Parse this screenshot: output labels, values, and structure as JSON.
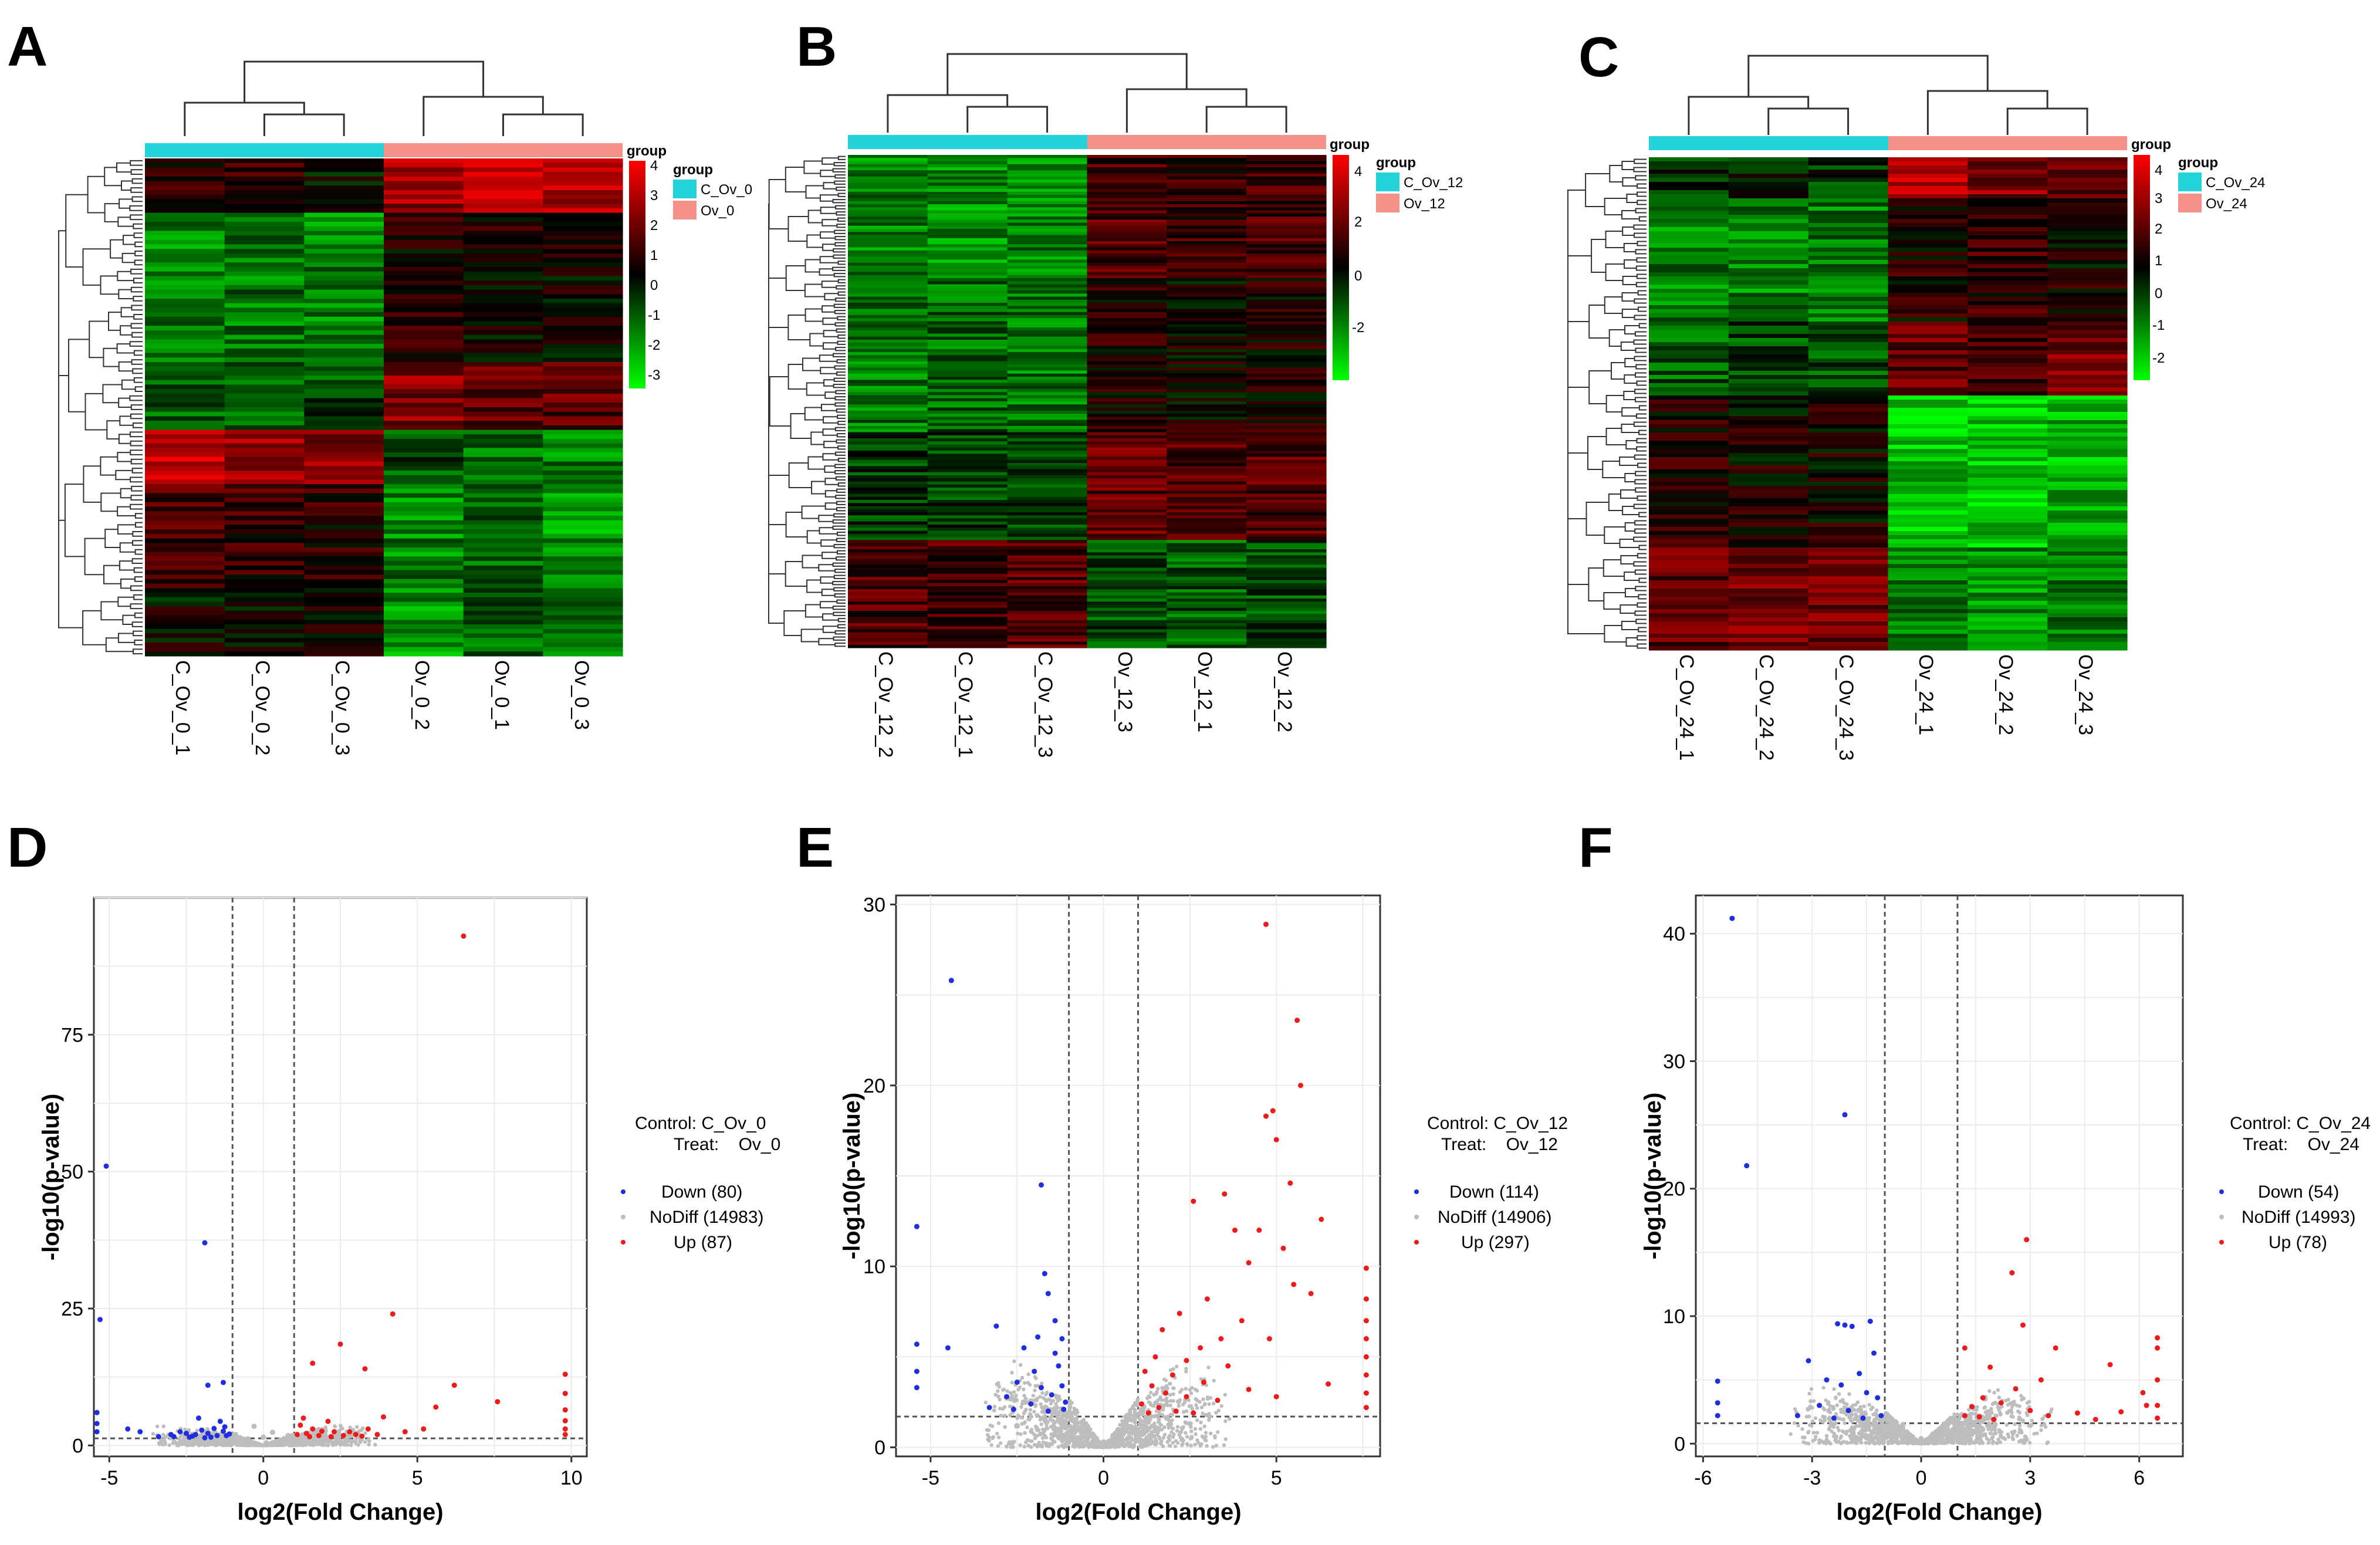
{
  "panels": {
    "A": "A",
    "B": "B",
    "C": "C",
    "D": "D",
    "E": "E",
    "F": "F"
  },
  "colors": {
    "control_group": "#22d3dc",
    "treat_group": "#f4928a",
    "down": "#1f2fe0",
    "nodiff": "#bdbdbd",
    "up": "#ee1b1b",
    "heat_high": "#ff0000",
    "heat_mid": "#000000",
    "heat_low": "#00ff00"
  },
  "heatmaps": [
    {
      "panel": "A",
      "legend_title": "group",
      "groups": [
        "C_Ov_0",
        "Ov_0"
      ],
      "colorbar_title": "group",
      "colorbar_ticks": [
        "4",
        "3",
        "2",
        "1",
        "0",
        "-1",
        "-2",
        "-3"
      ],
      "columns": [
        "C_Ov_0_1",
        "C_Ov_0_2",
        "C_Ov_0_3",
        "Ov_0_2",
        "Ov_0_1",
        "Ov_0_3"
      ]
    },
    {
      "panel": "B",
      "legend_title": "group",
      "groups": [
        "C_Ov_12",
        "Ov_12"
      ],
      "colorbar_title": "group",
      "colorbar_ticks": [
        "4",
        "2",
        "0",
        "-2"
      ],
      "columns": [
        "C_Ov_12_2",
        "C_Ov_12_1",
        "C_Ov_12_3",
        "Ov_12_3",
        "Ov_12_1",
        "Ov_12_2"
      ]
    },
    {
      "panel": "C",
      "legend_title": "group",
      "groups": [
        "C_Ov_24",
        "Ov_24"
      ],
      "colorbar_title": "group",
      "colorbar_ticks": [
        "4",
        "3",
        "2",
        "1",
        "0",
        "-1",
        "-2"
      ],
      "columns": [
        "C_Ov_24_1",
        "C_Ov_24_2",
        "C_Ov_24_3",
        "Ov_24_1",
        "Ov_24_2",
        "Ov_24_3"
      ]
    }
  ],
  "chart_data": [
    {
      "type": "scatter",
      "panel": "D",
      "title": "",
      "xlabel": "log2(Fold Change)",
      "ylabel": "-log10(p-value)",
      "xlim": [
        -5.5,
        10.5
      ],
      "ylim": [
        -2,
        100
      ],
      "xticks": [
        -5,
        0,
        5,
        10
      ],
      "yticks": [
        0,
        25,
        50,
        75
      ],
      "vlines": [
        -1,
        1
      ],
      "hline": 1.3,
      "legend_control": "Control: C_Ov_0",
      "legend_treat": "Treat:    Ov_0",
      "legend_entries": [
        "Down (80)",
        "NoDiff (14983)",
        "Up (87)"
      ],
      "series": [
        {
          "name": "Down",
          "points": [
            [
              -5.1,
              51
            ],
            [
              -5.3,
              23
            ],
            [
              -1.9,
              37
            ],
            [
              -1.8,
              11
            ],
            [
              -1.3,
              11.5
            ],
            [
              -5.4,
              6
            ],
            [
              -5.4,
              4
            ],
            [
              -5.4,
              2.5
            ],
            [
              -4.4,
              3
            ],
            [
              -4,
              2.5
            ],
            [
              -3,
              2
            ],
            [
              -2.7,
              2.5
            ],
            [
              -2.5,
              2.2
            ],
            [
              -2.2,
              2
            ],
            [
              -2,
              2.8
            ],
            [
              -1.8,
              2.2
            ],
            [
              -1.6,
              3.1
            ],
            [
              -1.5,
              1.8
            ],
            [
              -1.3,
              2.6
            ],
            [
              -1.2,
              1.8
            ],
            [
              -2.9,
              1.6
            ],
            [
              -2.4,
              1.5
            ],
            [
              -1.7,
              1.5
            ],
            [
              -1.1,
              2.1
            ],
            [
              -1.4,
              4.4
            ],
            [
              -2.1,
              5
            ],
            [
              -2.3,
              1.7
            ],
            [
              -1.9,
              1.4
            ],
            [
              -3.4,
              1.6
            ],
            [
              -1.25,
              3.4
            ]
          ]
        },
        {
          "name": "Up",
          "points": [
            [
              6.5,
              93
            ],
            [
              4.2,
              24
            ],
            [
              2.5,
              18.5
            ],
            [
              1.6,
              15
            ],
            [
              3.3,
              14
            ],
            [
              6.2,
              11
            ],
            [
              7.6,
              8
            ],
            [
              5.6,
              7
            ],
            [
              1.3,
              5
            ],
            [
              1.6,
              3
            ],
            [
              2.1,
              4.4
            ],
            [
              2.3,
              2.5
            ],
            [
              2.8,
              2.5
            ],
            [
              3.4,
              3
            ],
            [
              3.9,
              5.2
            ],
            [
              1.1,
              2
            ],
            [
              1.4,
              2.2
            ],
            [
              1.9,
              2.6
            ],
            [
              2.6,
              1.8
            ],
            [
              3,
              2
            ],
            [
              3.7,
              2
            ],
            [
              4.6,
              2.5
            ],
            [
              5.2,
              3
            ],
            [
              1.2,
              3.7
            ],
            [
              1.8,
              1.8
            ],
            [
              9.8,
              13
            ],
            [
              9.8,
              9.5
            ],
            [
              9.8,
              6.5
            ],
            [
              9.8,
              4.5
            ],
            [
              9.8,
              3
            ],
            [
              9.8,
              2
            ],
            [
              2.2,
              1.6
            ],
            [
              1.5,
              1.6
            ],
            [
              3.2,
              1.7
            ]
          ]
        },
        {
          "name": "NoDiff",
          "points": [
            [
              0,
              1.5
            ],
            [
              -0.5,
              1.2
            ],
            [
              0.6,
              1
            ],
            [
              0.3,
              2.4
            ],
            [
              -0.3,
              3.5
            ],
            [
              0.8,
              1.8
            ],
            [
              -0.9,
              2
            ],
            [
              0.1,
              0.5
            ]
          ]
        }
      ]
    },
    {
      "type": "scatter",
      "panel": "E",
      "title": "",
      "xlabel": "log2(Fold Change)",
      "ylabel": "-log10(p-value)",
      "xlim": [
        -6,
        8
      ],
      "ylim": [
        -0.5,
        30.5
      ],
      "xticks": [
        -5,
        0,
        5
      ],
      "yticks": [
        0,
        10,
        20,
        30
      ],
      "vlines": [
        -1,
        1
      ],
      "hline": 1.7,
      "legend_control": "Control: C_Ov_12",
      "legend_treat": "Treat:    Ov_12",
      "legend_entries": [
        "Down (114)",
        "NoDiff (14906)",
        "Up (297)"
      ],
      "series": [
        {
          "name": "Down",
          "points": [
            [
              -4.4,
              25.8
            ],
            [
              -5.4,
              12.2
            ],
            [
              -1.8,
              14.5
            ],
            [
              -5.4,
              5.7
            ],
            [
              -5.4,
              4.2
            ],
            [
              -5.4,
              3.3
            ],
            [
              -4.5,
              5.5
            ],
            [
              -3.1,
              6.7
            ],
            [
              -2.3,
              5.5
            ],
            [
              -1.6,
              8.5
            ],
            [
              -1.4,
              7
            ],
            [
              -1.7,
              9.6
            ],
            [
              -1.2,
              6
            ],
            [
              -1.3,
              4.5
            ],
            [
              -2,
              4.2
            ],
            [
              -2.5,
              3.6
            ],
            [
              -2.8,
              2.8
            ],
            [
              -3.3,
              2.2
            ],
            [
              -1.8,
              3.3
            ],
            [
              -1.5,
              2.9
            ],
            [
              -1.1,
              2.5
            ],
            [
              -2.1,
              2.4
            ],
            [
              -1.6,
              2
            ],
            [
              -1.2,
              3.4
            ],
            [
              -1.9,
              6.1
            ],
            [
              -1.4,
              5.2
            ],
            [
              -2.6,
              2.1
            ],
            [
              -1.15,
              2.1
            ]
          ]
        },
        {
          "name": "Up",
          "points": [
            [
              4.7,
              28.9
            ],
            [
              5.6,
              23.6
            ],
            [
              5.7,
              20
            ],
            [
              5,
              17
            ],
            [
              4.7,
              18.3
            ],
            [
              4.9,
              18.6
            ],
            [
              5.4,
              14.6
            ],
            [
              3.5,
              14
            ],
            [
              2.6,
              13.6
            ],
            [
              3.8,
              12
            ],
            [
              6.3,
              12.6
            ],
            [
              4.5,
              12
            ],
            [
              5.2,
              11
            ],
            [
              4.2,
              10.2
            ],
            [
              7.6,
              9.9
            ],
            [
              5.5,
              9
            ],
            [
              6,
              8.5
            ],
            [
              3,
              8.2
            ],
            [
              2.2,
              7.4
            ],
            [
              4,
              7
            ],
            [
              1.7,
              6.5
            ],
            [
              3.4,
              6
            ],
            [
              4.8,
              6
            ],
            [
              2.8,
              5.5
            ],
            [
              1.5,
              5
            ],
            [
              2.4,
              4.8
            ],
            [
              3.6,
              4.5
            ],
            [
              1.2,
              4.2
            ],
            [
              2,
              4
            ],
            [
              2.9,
              3.6
            ],
            [
              1.4,
              3.4
            ],
            [
              1.8,
              3
            ],
            [
              2.4,
              2.8
            ],
            [
              3.3,
              2.6
            ],
            [
              1.1,
              2.4
            ],
            [
              1.6,
              2.2
            ],
            [
              2.1,
              2
            ],
            [
              4.2,
              3.2
            ],
            [
              5,
              2.8
            ],
            [
              6.5,
              3.5
            ],
            [
              7.6,
              8.2
            ],
            [
              7.6,
              7
            ],
            [
              7.6,
              6
            ],
            [
              7.6,
              5
            ],
            [
              7.6,
              4
            ],
            [
              7.6,
              3
            ],
            [
              7.6,
              2.2
            ],
            [
              1.3,
              1.9
            ],
            [
              2.6,
              1.9
            ]
          ]
        },
        {
          "name": "NoDiff",
          "points": [
            [
              0,
              0.3
            ],
            [
              -0.5,
              1.2
            ],
            [
              0.6,
              1.2
            ],
            [
              -1.2,
              1.5
            ],
            [
              1.3,
              1.4
            ],
            [
              -2.5,
              1.2
            ],
            [
              2.5,
              1.3
            ]
          ]
        }
      ]
    },
    {
      "type": "scatter",
      "panel": "F",
      "title": "",
      "xlabel": "log2(Fold Change)",
      "ylabel": "-log10(p-value)",
      "xlim": [
        -6.2,
        7.2
      ],
      "ylim": [
        -1,
        43
      ],
      "xticks": [
        -6,
        -3,
        0,
        3,
        6
      ],
      "yticks": [
        0,
        10,
        20,
        30,
        40
      ],
      "vlines": [
        -1,
        1
      ],
      "hline": 1.6,
      "legend_control": "Control: C_Ov_24",
      "legend_treat": "Treat:    Ov_24",
      "legend_entries": [
        "Down (54)",
        "NoDiff (14993)",
        "Up (78)"
      ],
      "series": [
        {
          "name": "Down",
          "points": [
            [
              -5.2,
              41.2
            ],
            [
              -4.8,
              21.8
            ],
            [
              -2.1,
              25.8
            ],
            [
              -5.6,
              4.9
            ],
            [
              -5.6,
              3.2
            ],
            [
              -5.6,
              2.2
            ],
            [
              -3.1,
              6.5
            ],
            [
              -2.3,
              9.4
            ],
            [
              -2.1,
              9.3
            ],
            [
              -1.9,
              9.2
            ],
            [
              -1.4,
              9.6
            ],
            [
              -2.6,
              5
            ],
            [
              -2.2,
              4.6
            ],
            [
              -1.7,
              5.5
            ],
            [
              -1.3,
              7.1
            ],
            [
              -1.5,
              4
            ],
            [
              -2.8,
              3
            ],
            [
              -3.4,
              2.2
            ],
            [
              -2,
              2.6
            ],
            [
              -1.6,
              2
            ],
            [
              -1.2,
              3.6
            ],
            [
              -2.4,
              2
            ],
            [
              -1.1,
              2.2
            ]
          ]
        },
        {
          "name": "Up",
          "points": [
            [
              2.5,
              13.4
            ],
            [
              2.9,
              16
            ],
            [
              2.8,
              9.3
            ],
            [
              1.2,
              7.5
            ],
            [
              3.7,
              7.5
            ],
            [
              6.5,
              8.3
            ],
            [
              6.5,
              7.5
            ],
            [
              5.2,
              6.2
            ],
            [
              6.1,
              4
            ],
            [
              3.3,
              5
            ],
            [
              1.9,
              6
            ],
            [
              2.6,
              4.3
            ],
            [
              1.7,
              3.6
            ],
            [
              2.2,
              3.2
            ],
            [
              3,
              2.6
            ],
            [
              1.4,
              2.9
            ],
            [
              4.3,
              2.4
            ],
            [
              5.5,
              2.5
            ],
            [
              6.2,
              3
            ],
            [
              1.2,
              2.2
            ],
            [
              3.5,
              2.2
            ],
            [
              4.8,
              1.9
            ],
            [
              2,
              1.9
            ],
            [
              6.5,
              2
            ],
            [
              6.5,
              3
            ],
            [
              6.5,
              5
            ],
            [
              1.6,
              2.1
            ]
          ]
        },
        {
          "name": "NoDiff",
          "points": [
            [
              0,
              0.4
            ],
            [
              -0.5,
              1.5
            ],
            [
              0.6,
              1.3
            ],
            [
              -1.5,
              1.4
            ],
            [
              1.6,
              1.3
            ]
          ]
        }
      ]
    }
  ]
}
